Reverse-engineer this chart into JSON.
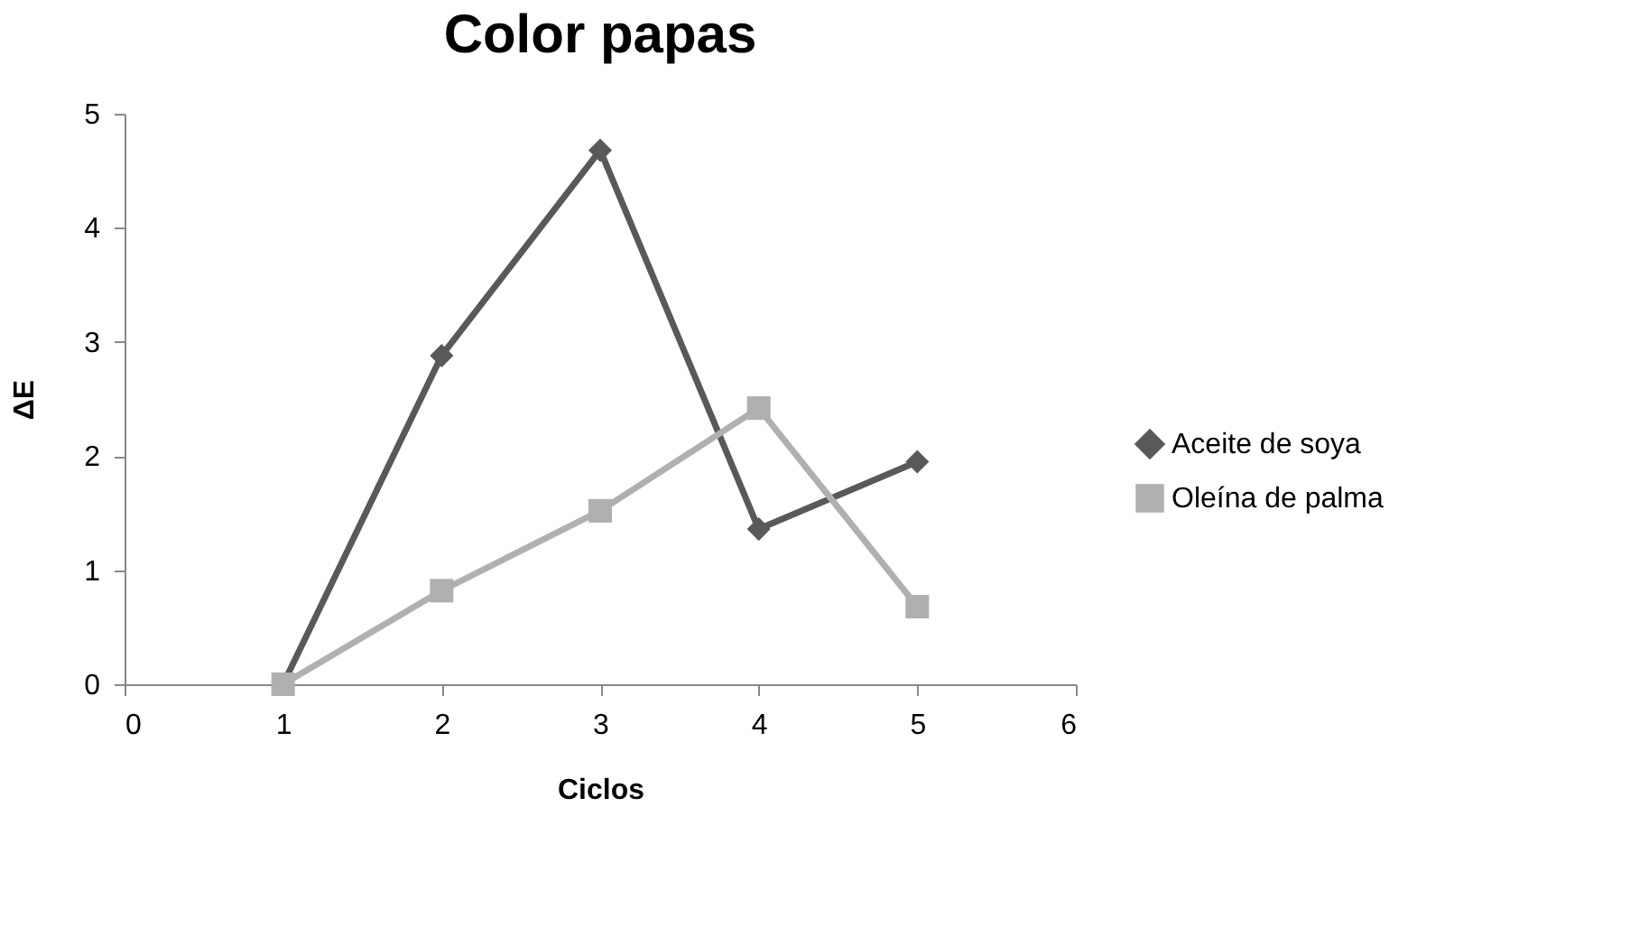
{
  "chart_data": {
    "type": "line",
    "title": "Color papas",
    "xlabel": "Ciclos",
    "ylabel": "ΔE",
    "x": [
      1,
      2,
      3,
      4,
      5
    ],
    "series": [
      {
        "name": "Aceite de soya",
        "color": "#595959",
        "marker": "diamond",
        "values": [
          0,
          2.88,
          4.68,
          1.36,
          1.95
        ]
      },
      {
        "name": "Oleína de palma",
        "color": "#b0b0b0",
        "marker": "square",
        "values": [
          0,
          0.82,
          1.52,
          2.42,
          0.68
        ]
      }
    ],
    "xlim": [
      0,
      6
    ],
    "xticks": [
      0,
      1,
      2,
      3,
      4,
      5,
      6
    ],
    "ylim": [
      0,
      5
    ],
    "yticks": [
      0,
      1,
      2,
      3,
      4,
      5
    ],
    "grid": false,
    "legend": "right",
    "line_style": "solid"
  }
}
